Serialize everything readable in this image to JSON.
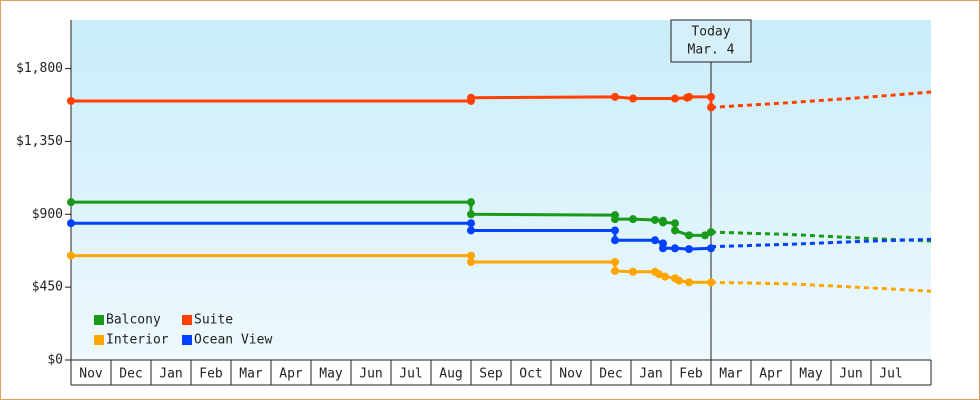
{
  "chart_data": {
    "type": "line",
    "categories": [
      "Nov",
      "Dec",
      "Jan",
      "Feb",
      "Mar",
      "Apr",
      "May",
      "Jun",
      "Jul",
      "Aug",
      "Sep",
      "Oct",
      "Nov",
      "Dec",
      "Jan",
      "Feb",
      "Mar",
      "Apr",
      "May",
      "Jun",
      "Jul"
    ],
    "xlim": [
      0,
      21.5
    ],
    "ylim": [
      0,
      2100
    ],
    "yticks": [
      {
        "value": 0,
        "label": "$0"
      },
      {
        "value": 450,
        "label": "$450"
      },
      {
        "value": 900,
        "label": "$900"
      },
      {
        "value": 1350,
        "label": "$1,350"
      },
      {
        "value": 1800,
        "label": "$1,800"
      }
    ],
    "annotation": {
      "lines": [
        "Today",
        "Mar. 4"
      ],
      "x": 16
    },
    "series": [
      {
        "name": "Balcony",
        "color": "#1a9a1a",
        "x": [
          0,
          10,
          10,
          13.6,
          13.6,
          14.05,
          14.6,
          14.8,
          14.8,
          15.1,
          15.1,
          15.45,
          15.85,
          16
        ],
        "values": [
          975,
          975,
          900,
          895,
          870,
          870,
          865,
          860,
          850,
          845,
          800,
          770,
          770,
          790
        ],
        "projection": {
          "x": [
            16,
            18,
            20,
            21.5
          ],
          "values": [
            790,
            775,
            750,
            735
          ]
        }
      },
      {
        "name": "Suite",
        "color": "#ff4000",
        "x": [
          0,
          10,
          10,
          13.6,
          14.05,
          15.1,
          15.4,
          15.45,
          16,
          16
        ],
        "values": [
          1600,
          1600,
          1620,
          1625,
          1615,
          1615,
          1620,
          1625,
          1625,
          1560
        ],
        "projection": {
          "x": [
            16,
            18,
            20,
            21.5
          ],
          "values": [
            1560,
            1590,
            1625,
            1655
          ]
        }
      },
      {
        "name": "Interior",
        "color": "#ffa500",
        "x": [
          0,
          10,
          10,
          13.6,
          13.6,
          14.05,
          14.6,
          14.7,
          14.85,
          15.1,
          15.2,
          15.45,
          16
        ],
        "values": [
          645,
          645,
          605,
          605,
          550,
          545,
          545,
          530,
          515,
          505,
          490,
          480,
          480
        ],
        "projection": {
          "x": [
            16,
            18,
            20,
            21.5
          ],
          "values": [
            480,
            470,
            445,
            425
          ]
        }
      },
      {
        "name": "Ocean View",
        "color": "#0040ff",
        "x": [
          0,
          10,
          10,
          13.6,
          13.6,
          14.6,
          14.8,
          14.8,
          15.1,
          15.45,
          16
        ],
        "values": [
          845,
          845,
          800,
          800,
          740,
          740,
          720,
          690,
          690,
          685,
          690
        ],
        "projection": {
          "x": [
            16,
            18,
            20,
            21.5
          ],
          "values": [
            700,
            715,
            735,
            745
          ]
        }
      }
    ]
  }
}
